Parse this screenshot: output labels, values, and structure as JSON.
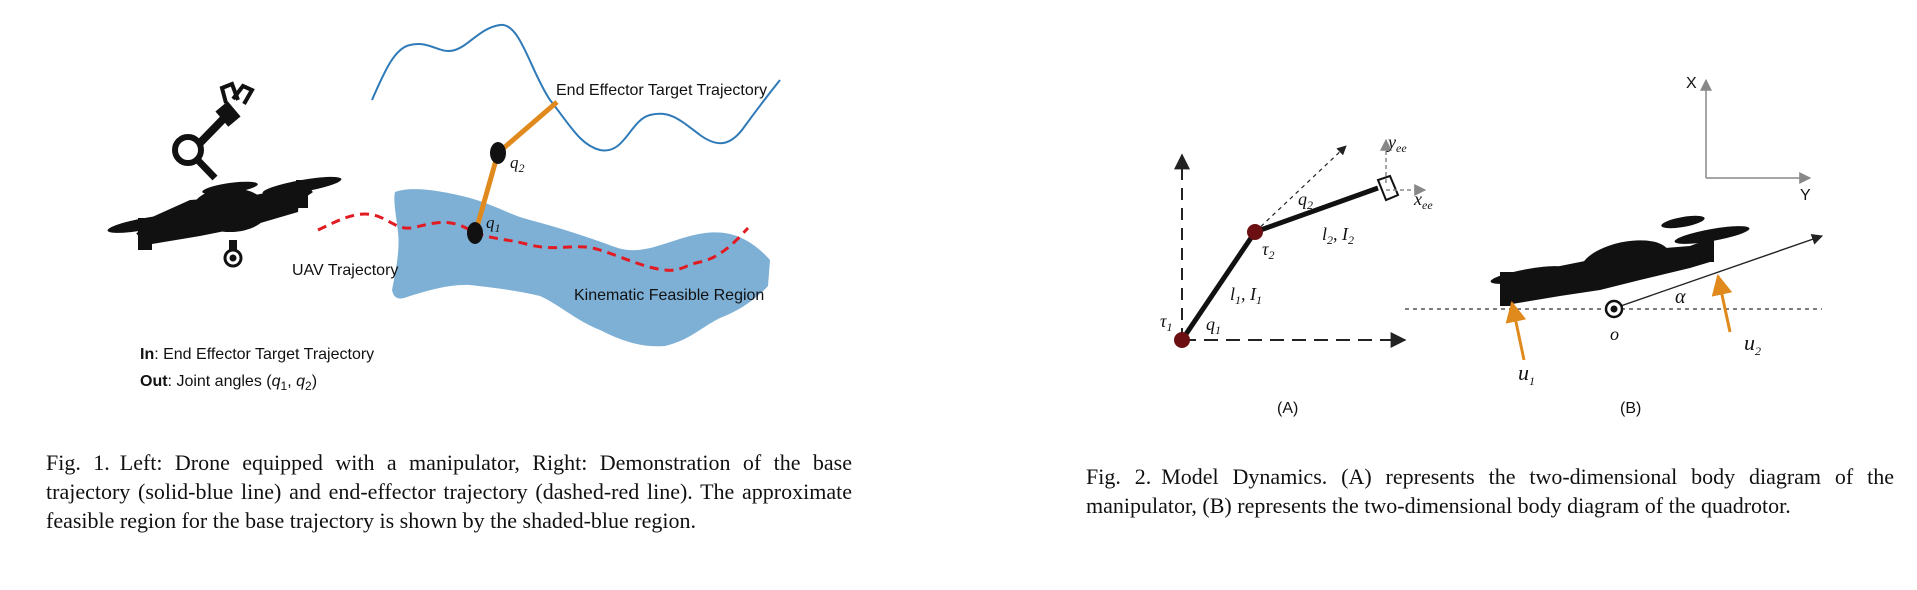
{
  "figure1": {
    "labels": {
      "end_effector_target": "End Effector Target Trajectory",
      "uav_trajectory": "UAV Trajectory",
      "kinematic_region": "Kinematic Feasible Region",
      "q1": "q",
      "q1_sub": "1",
      "q2": "q",
      "q2_sub": "2",
      "in_label": "In",
      "in_text": ": End Effector Target Trajectory",
      "out_label": "Out",
      "out_text": ": Joint angles (",
      "out_q1": "q",
      "out_q1_sub": "1",
      "out_sep": ", ",
      "out_q2": "q",
      "out_q2_sub": "2",
      "out_close": ")"
    },
    "caption_number": "Fig. 1.",
    "caption_text": "Left: Drone equipped with a manipulator, Right: Demonstration of the base trajectory (solid-blue line) and end-effector trajectory (dashed-red line). The approximate feasible region for the base trajectory is shown by the shaded-blue region."
  },
  "figure2": {
    "panel_a": {
      "label": "(A)",
      "tau1": "τ",
      "tau1_sub": "1",
      "tau2": "τ",
      "tau2_sub": "2",
      "q1": "q",
      "q1_sub": "1",
      "q2": "q",
      "q2_sub": "2",
      "link1": "l",
      "link1_sub": "1",
      "link1_sep": ", ",
      "inertia1": "I",
      "inertia1_sub": "1",
      "link2": "l",
      "link2_sub": "2",
      "link2_sep": ", ",
      "inertia2": "I",
      "inertia2_sub": "2",
      "yee": "y",
      "yee_sub": "ee",
      "xee": "x",
      "xee_sub": "ee"
    },
    "panel_b": {
      "label": "(B)",
      "axis_x": "X",
      "axis_y": "Y",
      "origin": "o",
      "alpha": "α",
      "u1": "u",
      "u1_sub": "1",
      "u2": "u",
      "u2_sub": "2"
    },
    "caption_number": "Fig. 2.",
    "caption_text": "Model Dynamics. (A) represents the two-dimensional body diagram of the manipulator, (B) represents the two-dimensional body diagram of the quadrotor."
  },
  "colors": {
    "region_blue": "#7eb0d6",
    "trajectory_blue": "#2f7ab8",
    "dashed_red": "#e21b23",
    "arm_orange": "#e08a1e",
    "joint_maroon": "#6b0f12"
  }
}
